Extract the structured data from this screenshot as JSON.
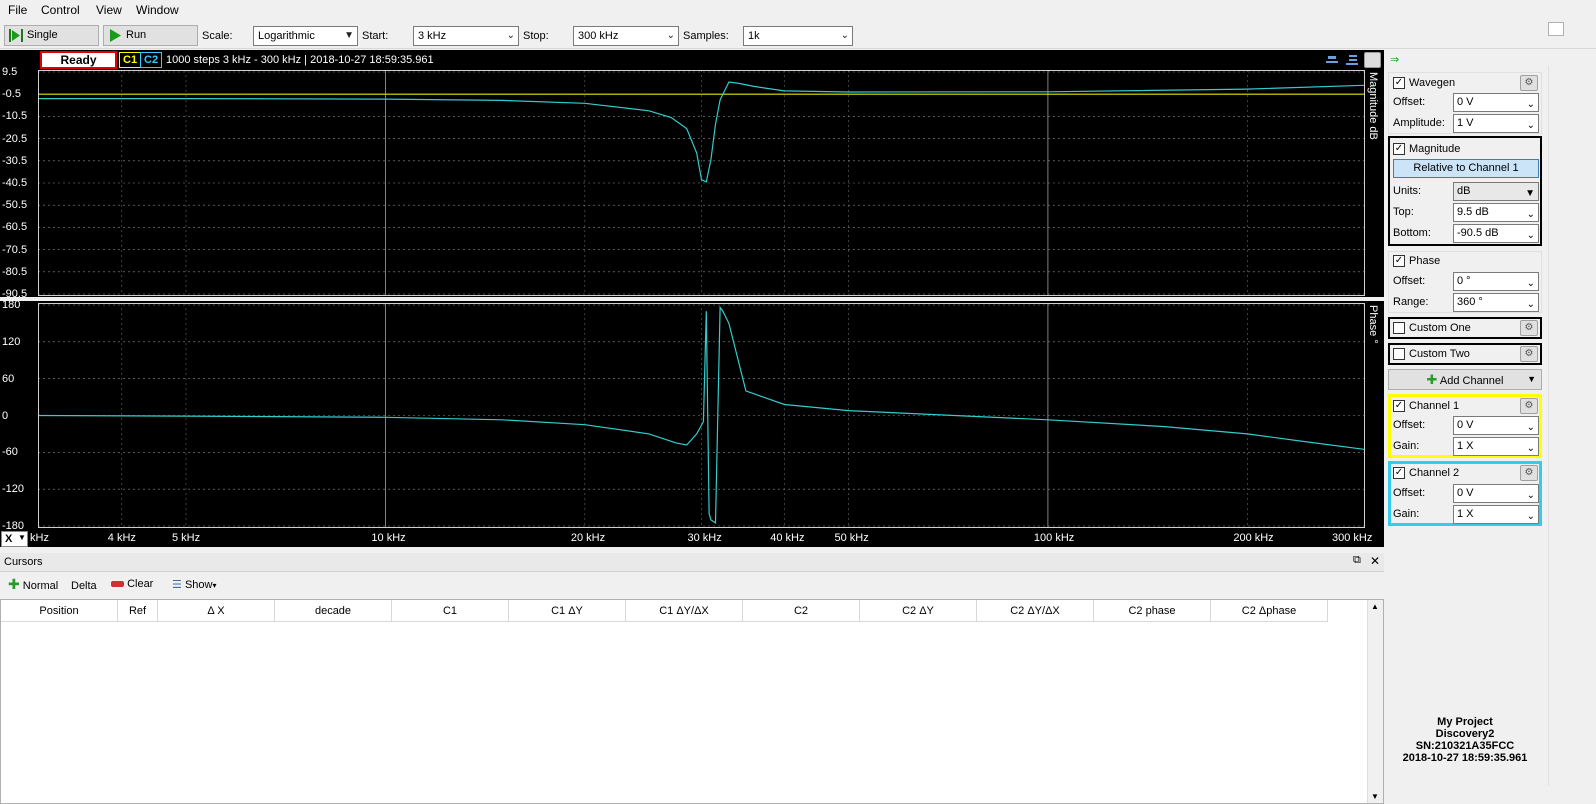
{
  "menu": [
    "File",
    "Control",
    "View",
    "Window"
  ],
  "toolbar": {
    "single_label": "Single",
    "run_label": "Run",
    "scale_label": "Scale:",
    "scale_value": "Logarithmic",
    "start_label": "Start:",
    "start_value": "3 kHz",
    "stop_label": "Stop:",
    "stop_value": "300 kHz",
    "samples_label": "Samples:",
    "samples_value": "1k"
  },
  "status": {
    "state": "Ready",
    "c1": "C1",
    "c2": "C2",
    "info": "1000 steps  3 kHz - 300 kHz | 2018-10-27 18:59:35.961"
  },
  "magnitude_plot": {
    "ylabel": "Magnitude dB",
    "yticks": [
      "9.5",
      "-0.5",
      "-10.5",
      "-20.5",
      "-30.5",
      "-40.5",
      "-50.5",
      "-60.5",
      "-70.5",
      "-80.5",
      "-90.5"
    ]
  },
  "phase_plot": {
    "ylabel": "Phase °",
    "yticks": [
      "180",
      "120",
      "60",
      "0",
      "-60",
      "-120",
      "-180"
    ]
  },
  "xaxis": {
    "button": "X",
    "ticks": [
      "kHz",
      "4 kHz",
      "5 kHz",
      "10 kHz",
      "20 kHz",
      "30 kHz",
      "40 kHz",
      "50 kHz",
      "100 kHz",
      "200 kHz",
      "300 kHz"
    ]
  },
  "chart_data": [
    {
      "type": "line",
      "xscale": "log",
      "xlim": [
        3000,
        300000
      ],
      "ylim": [
        -90.5,
        9.5
      ],
      "ylabel": "Magnitude dB",
      "grid": true,
      "series": [
        {
          "name": "C1",
          "color": "#e6e600",
          "x": [
            3000,
            10000,
            30000,
            100000,
            300000
          ],
          "y": [
            -0.5,
            -0.5,
            -0.5,
            -0.5,
            -0.5
          ]
        },
        {
          "name": "C2",
          "color": "#33cccc",
          "x": [
            3000,
            5000,
            10000,
            15000,
            20000,
            25000,
            27000,
            28500,
            29500,
            30000,
            30500,
            31000,
            31500,
            32000,
            33000,
            34000,
            36000,
            40000,
            50000,
            100000,
            200000,
            300000
          ],
          "y": [
            -2.5,
            -2.5,
            -2.7,
            -3.3,
            -4.6,
            -8,
            -11,
            -16,
            -27,
            -39,
            -40,
            -30,
            -14,
            -3,
            5,
            4.5,
            3,
            1,
            0.5,
            0.6,
            1.8,
            3.5
          ]
        }
      ]
    },
    {
      "type": "line",
      "xscale": "log",
      "xlim": [
        3000,
        300000
      ],
      "ylim": [
        -180,
        180
      ],
      "ylabel": "Phase °",
      "grid": true,
      "series": [
        {
          "name": "C2",
          "color": "#33cccc",
          "x": [
            3000,
            5000,
            10000,
            15000,
            20000,
            25000,
            27500,
            28500,
            29500,
            30200,
            30500,
            30800,
            31000,
            31500,
            32000,
            32300,
            33000,
            35000,
            40000,
            50000,
            100000,
            150000,
            200000,
            250000,
            300000
          ],
          "y": [
            0,
            -1,
            -3,
            -7,
            -15,
            -30,
            -45,
            -48,
            -30,
            -10,
            170,
            -160,
            -170,
            -175,
            176,
            170,
            150,
            40,
            18,
            8,
            -7,
            -18,
            -30,
            -44,
            -55
          ]
        }
      ]
    }
  ],
  "cursors": {
    "title": "Cursors",
    "normal": "Normal",
    "delta": "Delta",
    "clear": "Clear",
    "show": "Show",
    "columns": [
      "Position",
      "Ref",
      "Δ X",
      "decade",
      "C1",
      "C1 ΔY",
      "C1 ΔY/ΔX",
      "C2",
      "C2 ΔY",
      "C2 ΔY/ΔX",
      "C2 phase",
      "C2 Δphase"
    ]
  },
  "panel": {
    "wavegen": {
      "title": "Wavegen",
      "offset_label": "Offset:",
      "offset": "0 V",
      "amplitude_label": "Amplitude:",
      "amplitude": "1 V"
    },
    "magnitude": {
      "title": "Magnitude",
      "relative": "Relative to Channel 1",
      "units_label": "Units:",
      "units": "dB",
      "top_label": "Top:",
      "top": "9.5 dB",
      "bottom_label": "Bottom:",
      "bottom": "-90.5 dB"
    },
    "phase": {
      "title": "Phase",
      "offset_label": "Offset:",
      "offset": "0 °",
      "range_label": "Range:",
      "range": "360 °"
    },
    "custom_one": "Custom One",
    "custom_two": "Custom Two",
    "add_channel": "Add Channel",
    "channel1": {
      "title": "Channel 1",
      "offset_label": "Offset:",
      "offset": "0 V",
      "gain_label": "Gain:",
      "gain": "1 X"
    },
    "channel2": {
      "title": "Channel 2",
      "offset_label": "Offset:",
      "offset": "0 V",
      "gain_label": "Gain:",
      "gain": "1 X"
    }
  },
  "device": {
    "project": "My Project",
    "model": "Discovery2",
    "serial": "SN:210321A35FCC",
    "timestamp": "2018-10-27 18:59:35.961"
  }
}
